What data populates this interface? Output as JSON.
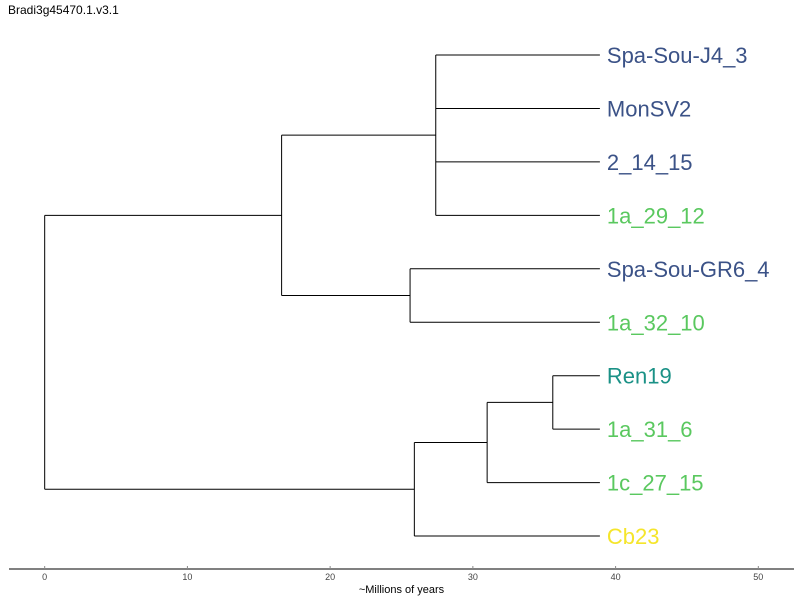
{
  "title": "Bradi3g45470.1.v3.1",
  "colors": {
    "branch": "#000000",
    "axis": "#000000"
  },
  "chart_data": {
    "type": "dendrogram",
    "title": "Bradi3g45470.1.v3.1",
    "xlabel": "~Millions of years",
    "xlim": [
      -2.5,
      52.5
    ],
    "ticks": [
      0,
      10,
      20,
      30,
      40,
      50
    ],
    "tip_age": 38.9,
    "tips": [
      {
        "name": "Spa-Sou-J4_3",
        "color": "#3b5287"
      },
      {
        "name": "MonSV2",
        "color": "#3b5287"
      },
      {
        "name": "2_14_15",
        "color": "#3b5287"
      },
      {
        "name": "1a_29_12",
        "color": "#5ac85f"
      },
      {
        "name": "Spa-Sou-GR6_4",
        "color": "#3b5287"
      },
      {
        "name": "1a_32_10",
        "color": "#5ac85f"
      },
      {
        "name": "Ren19",
        "color": "#1a9186"
      },
      {
        "name": "1a_31_6",
        "color": "#5ac85f"
      },
      {
        "name": "1c_27_15",
        "color": "#5ac85f"
      },
      {
        "name": "Cb23",
        "color": "#f5e52b"
      }
    ],
    "nodes": [
      {
        "id": "n_j4_mon_214_129",
        "age": 27.4,
        "children": [
          "tip:0",
          "tip:1",
          "tip:2",
          "tip:3"
        ]
      },
      {
        "id": "n_gr6_3210",
        "age": 25.6,
        "children": [
          "tip:4",
          "tip:5"
        ]
      },
      {
        "id": "n_upper",
        "age": 16.6,
        "children": [
          "node:n_j4_mon_214_129",
          "node:n_gr6_3210"
        ]
      },
      {
        "id": "n_ren_316",
        "age": 35.6,
        "children": [
          "tip:6",
          "tip:7"
        ]
      },
      {
        "id": "n_ren_316_2715",
        "age": 31.0,
        "children": [
          "node:n_ren_316",
          "tip:8"
        ]
      },
      {
        "id": "n_lower",
        "age": 25.9,
        "children": [
          "node:n_ren_316_2715",
          "tip:9"
        ]
      },
      {
        "id": "root",
        "age": 0,
        "children": [
          "node:n_upper",
          "node:n_lower"
        ]
      }
    ]
  }
}
